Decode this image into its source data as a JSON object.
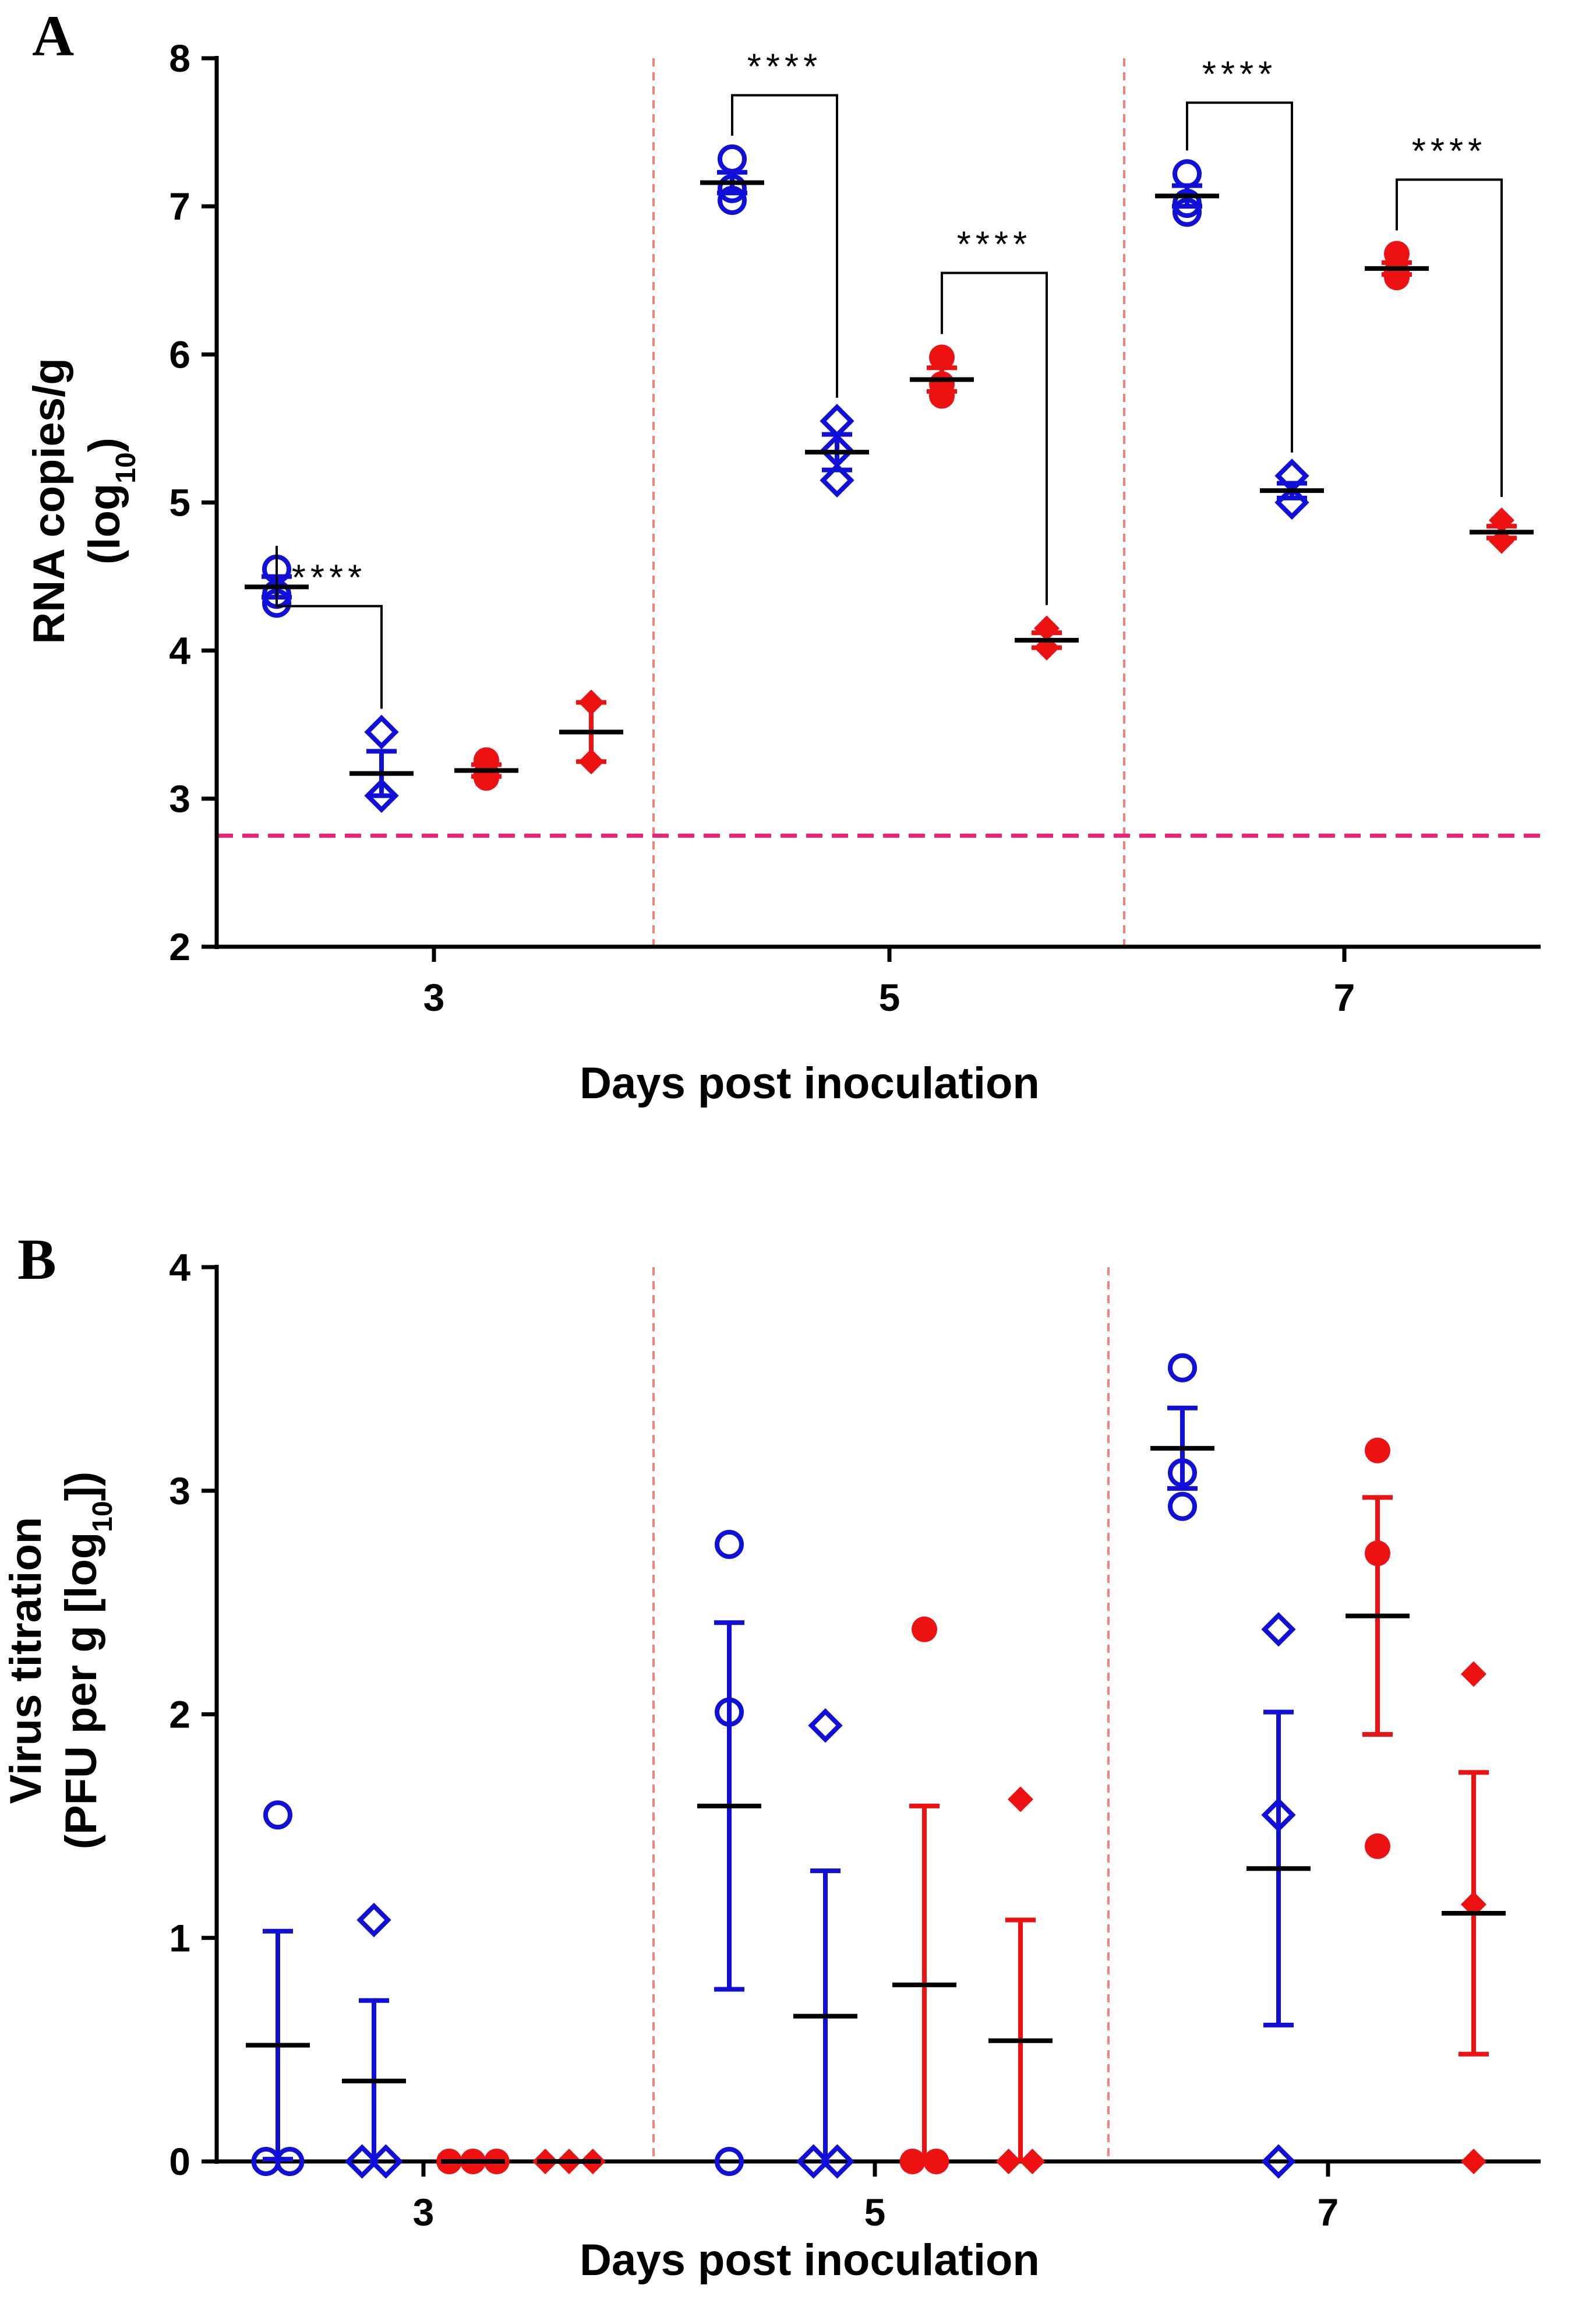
{
  "chart_data": [
    {
      "type": "scatter",
      "panel": "A",
      "title": "",
      "xlabel": "Days post inoculation",
      "ylabel_line1": "RNA copies/g",
      "ylabel_line2_main": "(log",
      "ylabel_line2_sub": "10",
      "ylabel_line2_end": ")",
      "ylim": [
        2,
        8
      ],
      "yticks": [
        "2",
        "3",
        "4",
        "5",
        "6",
        "7",
        "8"
      ],
      "xticks": [
        {
          "label": "3",
          "group": 0
        },
        {
          "label": "5",
          "group": 1
        },
        {
          "label": "7",
          "group": 2
        }
      ],
      "detection_limit": 2.75,
      "series": [
        {
          "name": "blue-circle",
          "marker": "circle-open",
          "color": "#1010d8"
        },
        {
          "name": "blue-diamond",
          "marker": "diamond-open",
          "color": "#1010d8"
        },
        {
          "name": "red-circle",
          "marker": "circle-filled",
          "color": "#ee1111"
        },
        {
          "name": "red-diamond",
          "marker": "diamond-filled",
          "color": "#ee1111"
        }
      ],
      "groups": [
        {
          "day": "3",
          "series": [
            {
              "points": [
                4.55,
                4.38,
                4.32
              ],
              "mean": 4.43,
              "sem": 0.07
            },
            {
              "points": [
                3.45,
                3.02
              ],
              "mean": 3.17,
              "sem": 0.15
            },
            {
              "points": [
                3.26,
                3.17,
                3.14
              ],
              "mean": 3.19,
              "sem": 0.04
            },
            {
              "points": [
                3.65,
                3.25
              ],
              "mean": 3.45,
              "sem": 0.2
            }
          ]
        },
        {
          "day": "5",
          "series": [
            {
              "points": [
                7.32,
                7.12,
                7.04
              ],
              "mean": 7.16,
              "sem": 0.07
            },
            {
              "points": [
                5.55,
                5.35,
                5.15
              ],
              "mean": 5.34,
              "sem": 0.12
            },
            {
              "points": [
                5.98,
                5.8,
                5.72
              ],
              "mean": 5.83,
              "sem": 0.08
            },
            {
              "points": [
                4.15,
                4.02
              ],
              "mean": 4.07,
              "sem": 0.05
            }
          ]
        },
        {
          "day": "7",
          "series": [
            {
              "points": [
                7.22,
                7.02,
                6.96
              ],
              "mean": 7.07,
              "sem": 0.07
            },
            {
              "points": [
                5.18,
                5.0
              ],
              "mean": 5.08,
              "sem": 0.05
            },
            {
              "points": [
                6.68,
                6.56,
                6.52
              ],
              "mean": 6.58,
              "sem": 0.04
            },
            {
              "points": [
                4.88,
                4.74
              ],
              "mean": 4.8,
              "sem": 0.04
            }
          ]
        }
      ],
      "annotations": [
        {
          "text": "****",
          "group": 0,
          "from": 0,
          "to": 1,
          "y": 4.3
        },
        {
          "text": "****",
          "group": 1,
          "from": 0,
          "to": 1,
          "y": 7.75
        },
        {
          "text": "****",
          "group": 1,
          "from": 2,
          "to": 3,
          "y": 6.55
        },
        {
          "text": "****",
          "group": 2,
          "from": 0,
          "to": 1,
          "y": 7.7
        },
        {
          "text": "****",
          "group": 2,
          "from": 2,
          "to": 3,
          "y": 7.18
        }
      ]
    },
    {
      "type": "scatter",
      "panel": "B",
      "title": "",
      "xlabel": "Days post inoculation",
      "ylabel_line1": "Virus titration",
      "ylabel_line2_main": "(PFU per g [log",
      "ylabel_line2_sub": "10",
      "ylabel_line2_end": "])",
      "ylim": [
        0,
        4
      ],
      "yticks": [
        "0",
        "1",
        "2",
        "3",
        "4"
      ],
      "xticks": [
        {
          "label": "3",
          "group": 0
        },
        {
          "label": "5",
          "group": 1
        },
        {
          "label": "7",
          "group": 2
        }
      ],
      "series": [
        {
          "name": "blue-circle",
          "marker": "circle-open",
          "color": "#1010d8"
        },
        {
          "name": "blue-diamond",
          "marker": "diamond-open",
          "color": "#1010d8"
        },
        {
          "name": "red-circle",
          "marker": "circle-filled",
          "color": "#ee1111"
        },
        {
          "name": "red-diamond",
          "marker": "diamond-filled",
          "color": "#ee1111"
        }
      ],
      "groups": [
        {
          "day": "3",
          "series": [
            {
              "points": [
                1.55,
                0,
                0
              ],
              "mean": 0.52,
              "sem": 0.51
            },
            {
              "points": [
                1.08,
                0,
                0
              ],
              "mean": 0.36,
              "sem": 0.36
            },
            {
              "points": [
                0,
                0,
                0
              ],
              "mean": 0,
              "sem": 0
            },
            {
              "points": [
                0,
                0,
                0
              ],
              "mean": 0,
              "sem": 0
            }
          ]
        },
        {
          "day": "5",
          "series": [
            {
              "points": [
                2.76,
                2.01,
                0
              ],
              "mean": 1.59,
              "sem": 0.82
            },
            {
              "points": [
                1.95,
                0,
                0
              ],
              "mean": 0.65,
              "sem": 0.65
            },
            {
              "points": [
                2.38,
                0,
                0
              ],
              "mean": 0.79,
              "sem": 0.8
            },
            {
              "points": [
                1.62,
                0,
                0
              ],
              "mean": 0.54,
              "sem": 0.54
            }
          ]
        },
        {
          "day": "7",
          "series": [
            {
              "points": [
                3.55,
                3.08,
                2.93
              ],
              "mean": 3.19,
              "sem": 0.18
            },
            {
              "points": [
                2.38,
                1.55,
                0
              ],
              "mean": 1.31,
              "sem": 0.7
            },
            {
              "points": [
                3.18,
                2.72,
                1.41
              ],
              "mean": 2.44,
              "sem": 0.53
            },
            {
              "points": [
                2.18,
                1.15,
                0
              ],
              "mean": 1.11,
              "sem": 0.63
            }
          ]
        }
      ],
      "annotations": []
    }
  ],
  "colors": {
    "blue": "#1010d8",
    "red": "#ee1111",
    "detection_line": "#ee2277",
    "divider": "#f08080",
    "mean_line": "#000000"
  }
}
